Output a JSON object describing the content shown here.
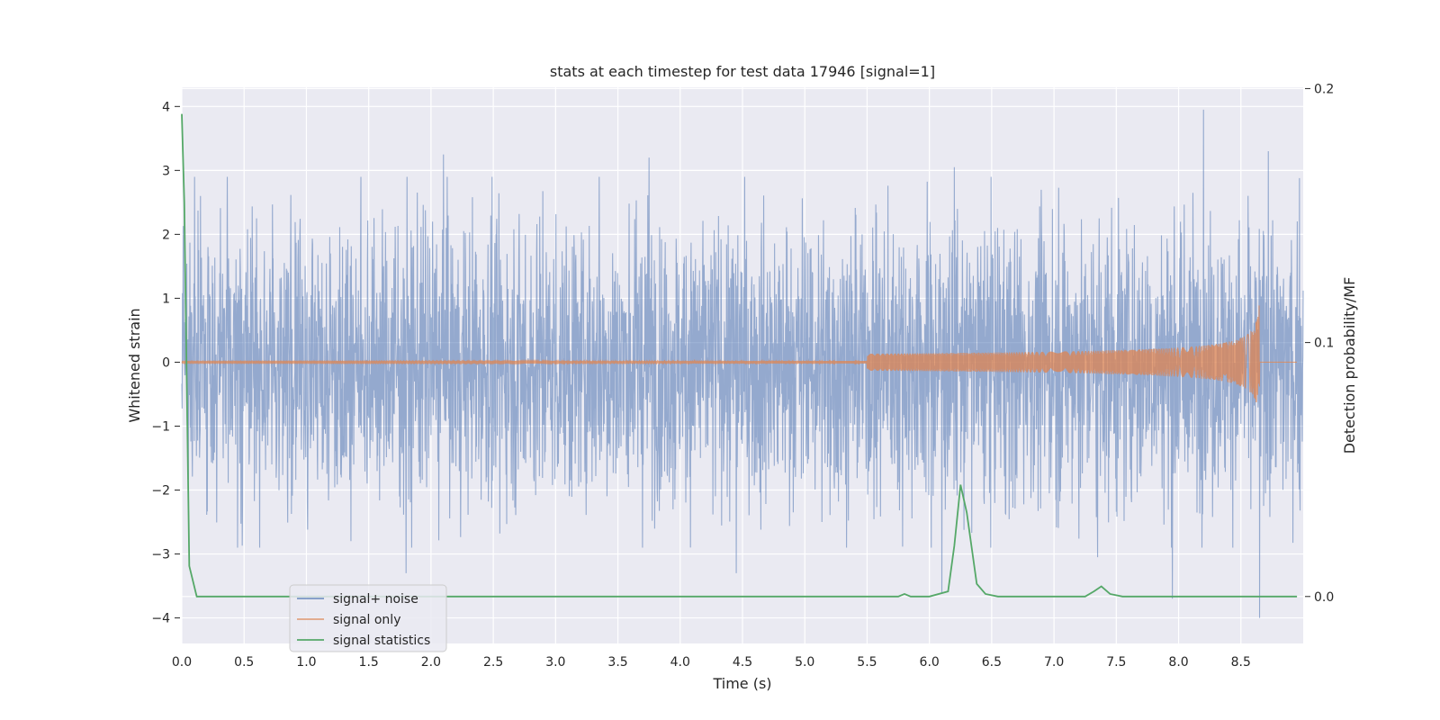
{
  "chart_data": {
    "type": "line",
    "title": "stats at each timestep for test data 17946 [signal=1]",
    "xlabel": "Time (s)",
    "ylabel": "Whitened strain",
    "y2label": "Detection probability/MF",
    "xlim": [
      0,
      9.0
    ],
    "ylim": [
      -4.4,
      4.3
    ],
    "y2lim": [
      -0.0185,
      0.2005
    ],
    "x_ticks": [
      "0.0",
      "0.5",
      "1.0",
      "1.5",
      "2.0",
      "2.5",
      "3.0",
      "3.5",
      "4.0",
      "4.5",
      "5.0",
      "5.5",
      "6.0",
      "6.5",
      "7.0",
      "7.5",
      "8.0",
      "8.5"
    ],
    "y_ticks": [
      "4",
      "3",
      "2",
      "1",
      "0",
      "−1",
      "−2",
      "−3",
      "−4"
    ],
    "y2_ticks": [
      "0.2",
      "0.1",
      "0.0"
    ],
    "grid": true,
    "legend_position": "lower-left",
    "series": [
      {
        "name": "signal+ noise",
        "color": "#4c72b0",
        "axis": "left",
        "kind": "noise",
        "duration": 9.0,
        "amplitude": 2.0,
        "peaks": [
          [
            0.15,
            2.6
          ],
          [
            1.8,
            -3.3
          ],
          [
            2.1,
            3.25
          ],
          [
            3.35,
            2.9
          ],
          [
            3.75,
            3.2
          ],
          [
            4.45,
            -3.3
          ],
          [
            6.1,
            -3.6
          ],
          [
            6.2,
            3.05
          ],
          [
            7.35,
            -3.05
          ],
          [
            7.95,
            -3.7
          ],
          [
            8.2,
            3.95
          ],
          [
            8.65,
            -4.0
          ],
          [
            8.72,
            3.3
          ]
        ]
      },
      {
        "name": "signal only",
        "color": "#dd8452",
        "axis": "left",
        "kind": "chirp",
        "merger_time": 8.65,
        "peak_amplitude": 1.0
      },
      {
        "name": "signal statistics",
        "color": "#55a868",
        "axis": "right",
        "kind": "line",
        "x": [
          0.0,
          0.02,
          0.06,
          0.12,
          0.5,
          1.0,
          2.0,
          3.0,
          4.0,
          5.0,
          5.75,
          5.8,
          5.85,
          6.0,
          6.15,
          6.2,
          6.25,
          6.3,
          6.38,
          6.45,
          6.55,
          7.0,
          7.25,
          7.32,
          7.38,
          7.45,
          7.55,
          8.0,
          8.5,
          8.95
        ],
        "y": [
          0.19,
          0.155,
          0.012,
          0.0,
          0.0,
          0.0,
          0.0,
          0.0,
          0.0,
          0.0,
          0.0,
          0.001,
          0.0,
          0.0,
          0.002,
          0.02,
          0.044,
          0.033,
          0.005,
          0.001,
          0.0,
          0.0,
          0.0,
          0.002,
          0.004,
          0.001,
          0.0,
          0.0,
          0.0,
          0.0
        ]
      }
    ]
  }
}
